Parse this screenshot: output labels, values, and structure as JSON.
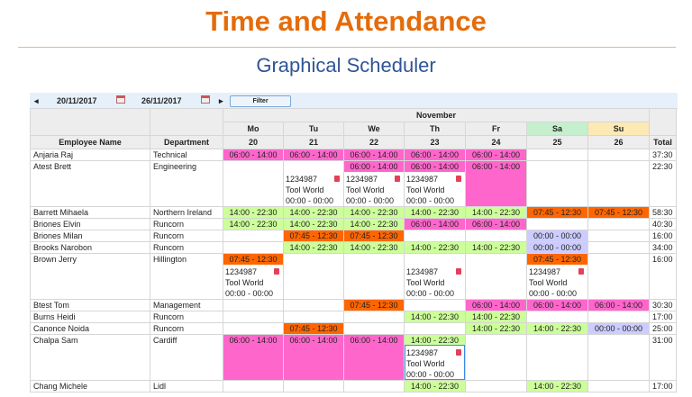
{
  "header": {
    "title": "Time and Attendance",
    "subtitle": "Graphical Scheduler"
  },
  "toolbar": {
    "prev": "◂",
    "start_date": "20/11/2017",
    "end_date": "26/11/2017",
    "next": "▸",
    "filter_label": "Filter"
  },
  "colors": {
    "pink": "#ff66cc",
    "green": "#ccff99",
    "orange": "#ff6600",
    "lavender": "#ccccff",
    "sat_header": "#c6efce",
    "sun_header": "#fce9b4"
  },
  "table": {
    "month": "November",
    "col_name": "Employee Name",
    "col_dept": "Department",
    "col_total": "Total",
    "days": [
      {
        "d": "Mo",
        "n": "20"
      },
      {
        "d": "Tu",
        "n": "21"
      },
      {
        "d": "We",
        "n": "22"
      },
      {
        "d": "Th",
        "n": "23"
      },
      {
        "d": "Fr",
        "n": "24"
      },
      {
        "d": "Sa",
        "n": "25"
      },
      {
        "d": "Su",
        "n": "26"
      }
    ],
    "rows": [
      {
        "name": "Anjaria Raj",
        "dept": "Technical",
        "total": "37:30",
        "cells": [
          {
            "s": "06:00 - 14:00",
            "c": "pink"
          },
          {
            "s": "06:00 - 14:00",
            "c": "pink"
          },
          {
            "s": "06:00 - 14:00",
            "c": "pink"
          },
          {
            "s": "06:00 - 14:00",
            "c": "pink"
          },
          {
            "s": "06:00 - 14:00",
            "c": "pink"
          },
          null,
          null
        ]
      },
      {
        "name": "Atest Brett",
        "dept": "Engineering",
        "total": "22:30",
        "tall": true,
        "cells": [
          null,
          {
            "job": {
              "id": "1234987",
              "site": "Tool World",
              "time": "00:00 - 00:00"
            }
          },
          {
            "s": "06:00 - 14:00",
            "c": "pink",
            "job": {
              "id": "1234987",
              "site": "Tool World",
              "time": "00:00 - 00:00"
            }
          },
          {
            "s": "06:00 - 14:00",
            "c": "pink",
            "job": {
              "id": "1234987",
              "site": "Tool World",
              "time": "00:00 - 00:00"
            }
          },
          {
            "s": "06:00 - 14:00",
            "c": "pink",
            "fill": true
          },
          null,
          null
        ]
      },
      {
        "name": "Barrett Mihaela",
        "dept": "Northern Ireland",
        "total": "58:30",
        "cells": [
          {
            "s": "14:00 - 22:30",
            "c": "green"
          },
          {
            "s": "14:00 - 22:30",
            "c": "green"
          },
          {
            "s": "14:00 - 22:30",
            "c": "green"
          },
          {
            "s": "14:00 - 22:30",
            "c": "green"
          },
          {
            "s": "14:00 - 22:30",
            "c": "green"
          },
          {
            "s": "07:45 - 12:30",
            "c": "orange"
          },
          {
            "s": "07:45 - 12:30",
            "c": "orange"
          }
        ]
      },
      {
        "name": "Briones Elvin",
        "dept": "Runcorn",
        "total": "40:30",
        "cells": [
          {
            "s": "14:00 - 22:30",
            "c": "green"
          },
          {
            "s": "14:00 - 22:30",
            "c": "green"
          },
          {
            "s": "14:00 - 22:30",
            "c": "green"
          },
          {
            "s": "06:00 - 14:00",
            "c": "pink"
          },
          {
            "s": "06:00 - 14:00",
            "c": "pink"
          },
          null,
          null
        ]
      },
      {
        "name": "Briones Milan",
        "dept": "Runcorn",
        "total": "16:00",
        "cells": [
          null,
          {
            "s": "07:45 - 12:30",
            "c": "orange"
          },
          {
            "s": "07:45 - 12:30",
            "c": "orange"
          },
          null,
          null,
          {
            "s": "00:00 - 00:00",
            "c": "lavender"
          },
          null
        ]
      },
      {
        "name": "Brooks Narobon",
        "dept": "Runcorn",
        "total": "34:00",
        "cells": [
          null,
          {
            "s": "14:00 - 22:30",
            "c": "green"
          },
          {
            "s": "14:00 - 22:30",
            "c": "green"
          },
          {
            "s": "14:00 - 22:30",
            "c": "green"
          },
          {
            "s": "14:00 - 22:30",
            "c": "green"
          },
          {
            "s": "00:00 - 00:00",
            "c": "lavender"
          },
          null
        ]
      },
      {
        "name": "Brown Jerry",
        "dept": "Hillington",
        "total": "16:00",
        "tall": true,
        "cells": [
          {
            "s": "07:45 - 12:30",
            "c": "orange",
            "job": {
              "id": "1234987",
              "site": "Tool World",
              "time": "00:00 - 00:00"
            }
          },
          null,
          null,
          {
            "job": {
              "id": "1234987",
              "site": "Tool World",
              "time": "00:00 - 00:00"
            }
          },
          null,
          {
            "s": "07:45 - 12:30",
            "c": "orange",
            "job": {
              "id": "1234987",
              "site": "Tool World",
              "time": "00:00 - 00:00"
            }
          },
          null
        ]
      },
      {
        "name": "Btest Tom",
        "dept": "Management",
        "total": "30:30",
        "cells": [
          null,
          null,
          {
            "s": "07:45 - 12:30",
            "c": "orange"
          },
          null,
          {
            "s": "06:00 - 14:00",
            "c": "pink"
          },
          {
            "s": "06:00 - 14:00",
            "c": "pink"
          },
          {
            "s": "06:00 - 14:00",
            "c": "pink"
          }
        ]
      },
      {
        "name": "Burns Heidi",
        "dept": "Runcorn",
        "total": "17:00",
        "cells": [
          null,
          null,
          null,
          {
            "s": "14:00 - 22:30",
            "c": "green"
          },
          {
            "s": "14:00 - 22:30",
            "c": "green"
          },
          null,
          null
        ]
      },
      {
        "name": "Canonce Noida",
        "dept": "Runcorn",
        "total": "25:00",
        "cells": [
          null,
          {
            "s": "07:45 - 12:30",
            "c": "orange"
          },
          null,
          null,
          {
            "s": "14:00 - 22:30",
            "c": "green"
          },
          {
            "s": "14:00 - 22:30",
            "c": "green"
          },
          {
            "s": "00:00 - 00:00",
            "c": "lavender"
          }
        ]
      },
      {
        "name": "Chalpa Sam",
        "dept": "Cardiff",
        "total": "31:00",
        "tall": true,
        "cells": [
          {
            "s": "06:00 - 14:00",
            "c": "pink",
            "fill": true
          },
          {
            "s": "06:00 - 14:00",
            "c": "pink",
            "fill": true
          },
          {
            "s": "06:00 - 14:00",
            "c": "pink",
            "fill": true
          },
          {
            "s": "14:00 - 22:30",
            "c": "green",
            "selected": true,
            "job": {
              "id": "1234987",
              "site": "Tool World",
              "time": "00:00 - 00:00"
            }
          },
          null,
          null,
          null
        ]
      },
      {
        "name": "Chang Michele",
        "dept": "Lidl",
        "total": "17:00",
        "cells": [
          null,
          null,
          null,
          {
            "s": "14:00 - 22:30",
            "c": "green"
          },
          null,
          {
            "s": "14:00 - 22:30",
            "c": "green"
          },
          null
        ]
      }
    ]
  }
}
